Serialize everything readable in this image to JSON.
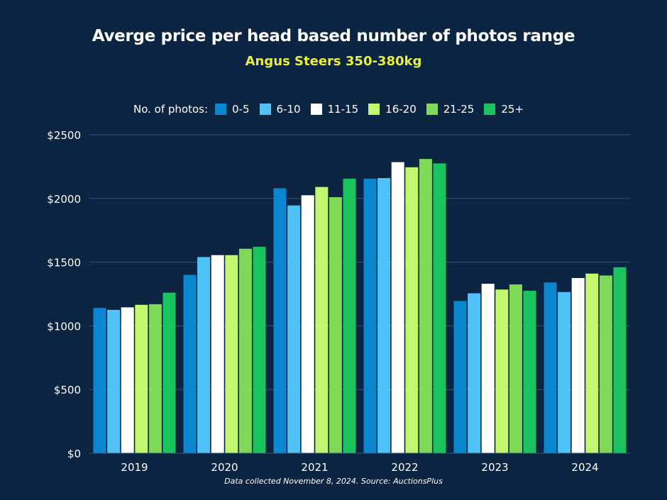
{
  "chart_data": {
    "type": "bar",
    "title": "Averge price per head based number of photos range",
    "subtitle": "Angus Steers 350-380kg",
    "legend_title": "No. of photos:",
    "categories": [
      "2019",
      "2020",
      "2021",
      "2022",
      "2023",
      "2024"
    ],
    "series": [
      {
        "name": "0-5",
        "color": "#0a87d1",
        "values": [
          1140,
          1400,
          2080,
          2155,
          1195,
          1340
        ]
      },
      {
        "name": "6-10",
        "color": "#4fc3f7",
        "values": [
          1125,
          1540,
          1945,
          2160,
          1255,
          1265
        ]
      },
      {
        "name": "11-15",
        "color": "#ffffff",
        "values": [
          1145,
          1555,
          2025,
          2285,
          1330,
          1375
        ]
      },
      {
        "name": "16-20",
        "color": "#c4f56e",
        "values": [
          1165,
          1555,
          2090,
          2245,
          1285,
          1410
        ]
      },
      {
        "name": "21-25",
        "color": "#7ed957",
        "values": [
          1170,
          1605,
          2010,
          2310,
          1325,
          1395
        ]
      },
      {
        "name": "25+",
        "color": "#19c45f",
        "values": [
          1260,
          1620,
          2155,
          2275,
          1275,
          1460
        ]
      }
    ],
    "ylim": [
      0,
      2500
    ],
    "yticks": [
      "$0",
      "$500",
      "$1000",
      "$1500",
      "$2000",
      "$2500"
    ],
    "ytick_values": [
      0,
      500,
      1000,
      1500,
      2000,
      2500
    ],
    "grid": true,
    "legend_position": "top"
  },
  "footnote": "Data collected November 8, 2024. Source: AuctionsPlus"
}
